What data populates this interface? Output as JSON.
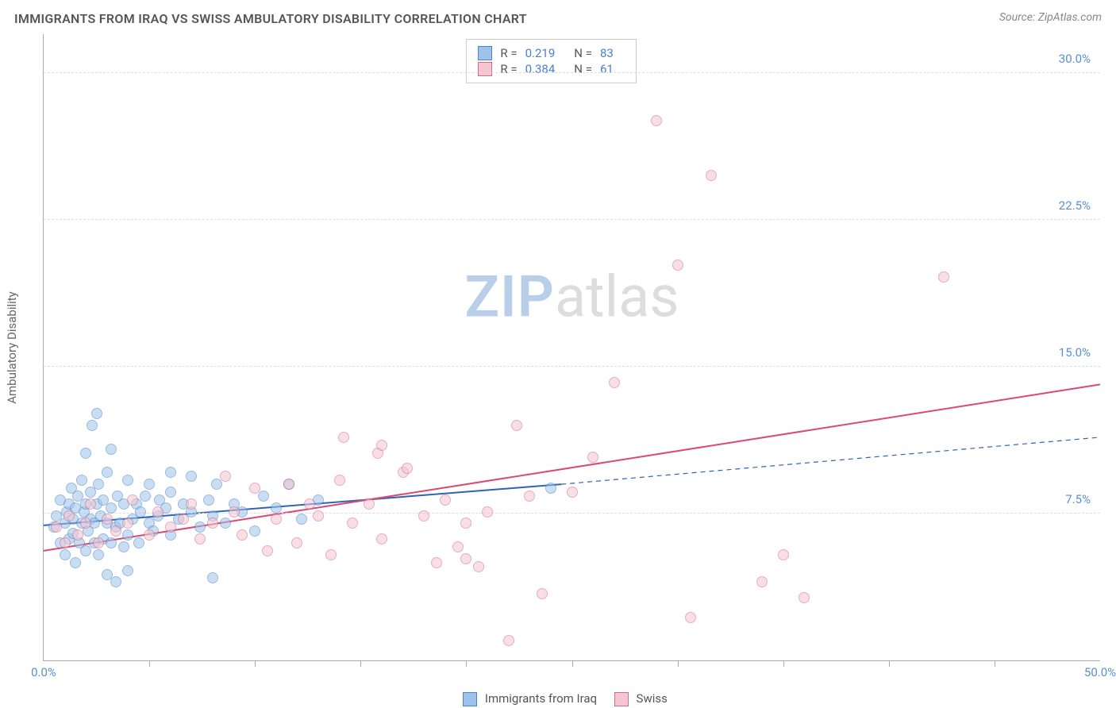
{
  "header": {
    "title": "IMMIGRANTS FROM IRAQ VS SWISS AMBULATORY DISABILITY CORRELATION CHART",
    "source_prefix": "Source: ",
    "source_name": "ZipAtlas.com"
  },
  "chart": {
    "type": "scatter",
    "xlabel": "",
    "ylabel": "Ambulatory Disability",
    "xlim": [
      0,
      50
    ],
    "ylim": [
      0,
      32
    ],
    "xtick_values": [
      0,
      50
    ],
    "xtick_labels": [
      "0.0%",
      "50.0%"
    ],
    "xtick_minor": [
      5,
      10,
      15,
      20,
      25,
      30,
      35,
      40,
      45
    ],
    "ytick_values": [
      7.5,
      15.0,
      22.5,
      30.0
    ],
    "ytick_labels": [
      "7.5%",
      "15.0%",
      "22.5%",
      "30.0%"
    ],
    "background_color": "#ffffff",
    "grid_color": "#dddddd",
    "axis_color": "#aaaaaa",
    "label_color": "#666666",
    "tick_label_color": "#5a8fd6",
    "label_fontsize": 15,
    "tick_fontsize": 15,
    "marker_radius": 7,
    "marker_opacity": 0.55,
    "series": [
      {
        "name": "Immigrants from Iraq",
        "color_fill": "#9ec3ea",
        "color_stroke": "#4a86c5",
        "R": "0.219",
        "N": "83",
        "trend": {
          "x1": 0,
          "y1": 6.9,
          "x2": 24.5,
          "y2": 9.0,
          "dash_x2": 50,
          "dash_y2": 11.4,
          "color": "#2f62b8",
          "width": 2
        },
        "points": [
          {
            "x": 0.5,
            "y": 6.8
          },
          {
            "x": 0.6,
            "y": 7.4
          },
          {
            "x": 0.8,
            "y": 6.0
          },
          {
            "x": 0.8,
            "y": 8.2
          },
          {
            "x": 1.0,
            "y": 5.4
          },
          {
            "x": 1.0,
            "y": 7.0
          },
          {
            "x": 1.1,
            "y": 7.6
          },
          {
            "x": 1.2,
            "y": 6.2
          },
          {
            "x": 1.2,
            "y": 8.0
          },
          {
            "x": 1.3,
            "y": 8.8
          },
          {
            "x": 1.4,
            "y": 6.5
          },
          {
            "x": 1.4,
            "y": 7.2
          },
          {
            "x": 1.5,
            "y": 5.0
          },
          {
            "x": 1.5,
            "y": 7.8
          },
          {
            "x": 1.6,
            "y": 8.4
          },
          {
            "x": 1.7,
            "y": 6.0
          },
          {
            "x": 1.8,
            "y": 9.2
          },
          {
            "x": 1.8,
            "y": 7.0
          },
          {
            "x": 1.9,
            "y": 7.6
          },
          {
            "x": 2.0,
            "y": 5.6
          },
          {
            "x": 2.0,
            "y": 8.0
          },
          {
            "x": 2.0,
            "y": 10.6
          },
          {
            "x": 2.1,
            "y": 6.6
          },
          {
            "x": 2.2,
            "y": 7.2
          },
          {
            "x": 2.2,
            "y": 8.6
          },
          {
            "x": 2.3,
            "y": 12.0
          },
          {
            "x": 2.4,
            "y": 6.0
          },
          {
            "x": 2.4,
            "y": 7.0
          },
          {
            "x": 2.5,
            "y": 8.0
          },
          {
            "x": 2.5,
            "y": 12.6
          },
          {
            "x": 2.6,
            "y": 5.4
          },
          {
            "x": 2.6,
            "y": 9.0
          },
          {
            "x": 2.7,
            "y": 7.4
          },
          {
            "x": 2.8,
            "y": 6.2
          },
          {
            "x": 2.8,
            "y": 8.2
          },
          {
            "x": 3.0,
            "y": 4.4
          },
          {
            "x": 3.0,
            "y": 7.0
          },
          {
            "x": 3.0,
            "y": 9.6
          },
          {
            "x": 3.2,
            "y": 6.0
          },
          {
            "x": 3.2,
            "y": 7.8
          },
          {
            "x": 3.2,
            "y": 10.8
          },
          {
            "x": 3.4,
            "y": 4.0
          },
          {
            "x": 3.4,
            "y": 6.8
          },
          {
            "x": 3.5,
            "y": 8.4
          },
          {
            "x": 3.6,
            "y": 7.0
          },
          {
            "x": 3.8,
            "y": 5.8
          },
          {
            "x": 3.8,
            "y": 8.0
          },
          {
            "x": 4.0,
            "y": 6.4
          },
          {
            "x": 4.0,
            "y": 9.2
          },
          {
            "x": 4.0,
            "y": 4.6
          },
          {
            "x": 4.2,
            "y": 7.2
          },
          {
            "x": 4.4,
            "y": 8.0
          },
          {
            "x": 4.5,
            "y": 6.0
          },
          {
            "x": 4.6,
            "y": 7.6
          },
          {
            "x": 4.8,
            "y": 8.4
          },
          {
            "x": 5.0,
            "y": 7.0
          },
          {
            "x": 5.0,
            "y": 9.0
          },
          {
            "x": 5.2,
            "y": 6.6
          },
          {
            "x": 5.4,
            "y": 7.4
          },
          {
            "x": 5.5,
            "y": 8.2
          },
          {
            "x": 5.8,
            "y": 7.8
          },
          {
            "x": 6.0,
            "y": 6.4
          },
          {
            "x": 6.0,
            "y": 9.6
          },
          {
            "x": 6.0,
            "y": 8.6
          },
          {
            "x": 6.4,
            "y": 7.2
          },
          {
            "x": 6.6,
            "y": 8.0
          },
          {
            "x": 7.0,
            "y": 7.6
          },
          {
            "x": 7.0,
            "y": 9.4
          },
          {
            "x": 7.4,
            "y": 6.8
          },
          {
            "x": 7.8,
            "y": 8.2
          },
          {
            "x": 8.0,
            "y": 4.2
          },
          {
            "x": 8.0,
            "y": 7.4
          },
          {
            "x": 8.2,
            "y": 9.0
          },
          {
            "x": 8.6,
            "y": 7.0
          },
          {
            "x": 9.0,
            "y": 8.0
          },
          {
            "x": 9.4,
            "y": 7.6
          },
          {
            "x": 10.0,
            "y": 6.6
          },
          {
            "x": 10.4,
            "y": 8.4
          },
          {
            "x": 11.0,
            "y": 7.8
          },
          {
            "x": 11.6,
            "y": 9.0
          },
          {
            "x": 12.2,
            "y": 7.2
          },
          {
            "x": 13.0,
            "y": 8.2
          },
          {
            "x": 24.0,
            "y": 8.8
          }
        ]
      },
      {
        "name": "Swiss",
        "color_fill": "#f4c6d2",
        "color_stroke": "#d46a8a",
        "R": "0.384",
        "N": "61",
        "trend": {
          "x1": 0,
          "y1": 5.6,
          "x2": 50,
          "y2": 14.1,
          "color": "#d94a74",
          "width": 2
        },
        "points": [
          {
            "x": 0.6,
            "y": 6.8
          },
          {
            "x": 1.0,
            "y": 6.0
          },
          {
            "x": 1.2,
            "y": 7.4
          },
          {
            "x": 1.6,
            "y": 6.4
          },
          {
            "x": 2.0,
            "y": 7.0
          },
          {
            "x": 2.2,
            "y": 8.0
          },
          {
            "x": 2.6,
            "y": 6.0
          },
          {
            "x": 3.0,
            "y": 7.2
          },
          {
            "x": 3.4,
            "y": 6.6
          },
          {
            "x": 4.0,
            "y": 7.0
          },
          {
            "x": 4.2,
            "y": 8.2
          },
          {
            "x": 5.0,
            "y": 6.4
          },
          {
            "x": 5.4,
            "y": 7.6
          },
          {
            "x": 6.0,
            "y": 6.8
          },
          {
            "x": 6.6,
            "y": 7.2
          },
          {
            "x": 7.0,
            "y": 8.0
          },
          {
            "x": 7.4,
            "y": 6.2
          },
          {
            "x": 8.0,
            "y": 7.0
          },
          {
            "x": 8.6,
            "y": 9.4
          },
          {
            "x": 9.0,
            "y": 7.6
          },
          {
            "x": 9.4,
            "y": 6.4
          },
          {
            "x": 10.0,
            "y": 8.8
          },
          {
            "x": 10.6,
            "y": 5.6
          },
          {
            "x": 11.0,
            "y": 7.2
          },
          {
            "x": 11.6,
            "y": 9.0
          },
          {
            "x": 12.0,
            "y": 6.0
          },
          {
            "x": 12.6,
            "y": 8.0
          },
          {
            "x": 13.0,
            "y": 7.4
          },
          {
            "x": 13.6,
            "y": 5.4
          },
          {
            "x": 14.0,
            "y": 9.2
          },
          {
            "x": 14.2,
            "y": 11.4
          },
          {
            "x": 14.6,
            "y": 7.0
          },
          {
            "x": 15.4,
            "y": 8.0
          },
          {
            "x": 15.8,
            "y": 10.6
          },
          {
            "x": 16.0,
            "y": 6.2
          },
          {
            "x": 16.0,
            "y": 11.0
          },
          {
            "x": 17.0,
            "y": 9.6
          },
          {
            "x": 17.2,
            "y": 9.8
          },
          {
            "x": 18.0,
            "y": 7.4
          },
          {
            "x": 18.6,
            "y": 5.0
          },
          {
            "x": 19.0,
            "y": 8.2
          },
          {
            "x": 19.6,
            "y": 5.8
          },
          {
            "x": 20.0,
            "y": 7.0
          },
          {
            "x": 20.6,
            "y": 4.8
          },
          {
            "x": 21.0,
            "y": 7.6
          },
          {
            "x": 22.0,
            "y": 1.0
          },
          {
            "x": 22.4,
            "y": 12.0
          },
          {
            "x": 23.0,
            "y": 8.4
          },
          {
            "x": 23.6,
            "y": 3.4
          },
          {
            "x": 25.0,
            "y": 8.6
          },
          {
            "x": 26.0,
            "y": 10.4
          },
          {
            "x": 27.0,
            "y": 14.2
          },
          {
            "x": 29.0,
            "y": 27.6
          },
          {
            "x": 30.0,
            "y": 20.2
          },
          {
            "x": 30.6,
            "y": 2.2
          },
          {
            "x": 31.6,
            "y": 24.8
          },
          {
            "x": 34.0,
            "y": 4.0
          },
          {
            "x": 35.0,
            "y": 5.4
          },
          {
            "x": 36.0,
            "y": 3.2
          },
          {
            "x": 42.6,
            "y": 19.6
          },
          {
            "x": 20.0,
            "y": 5.2
          }
        ]
      }
    ],
    "legend_top": {
      "R_label": "R =",
      "N_label": "N ="
    },
    "footer_legend": [
      {
        "label": "Immigrants from Iraq",
        "fill": "#9ec3ea",
        "stroke": "#4a86c5"
      },
      {
        "label": "Swiss",
        "fill": "#f4c6d2",
        "stroke": "#d46a8a"
      }
    ]
  },
  "watermark": {
    "part1": "ZIP",
    "part2": "atlas"
  }
}
